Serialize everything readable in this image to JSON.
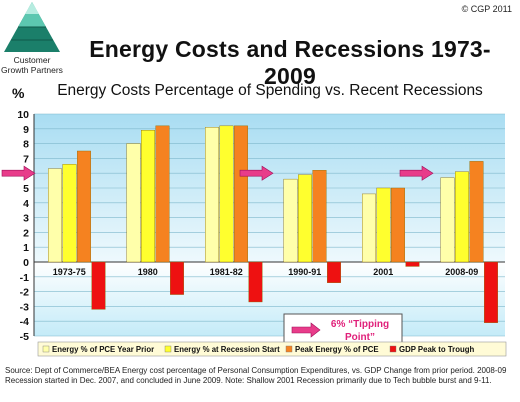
{
  "header": {
    "logo_text": "Customer\nGrowth Partners",
    "copyright": "© CGP 2011",
    "title": "Energy Costs and Recessions 1973-2009"
  },
  "chart_data": {
    "type": "bar",
    "title": "Energy Costs Percentage of Spending vs. Recent Recessions",
    "ylabel": "%",
    "ylim": [
      -5,
      10
    ],
    "yticks": [
      10,
      9,
      8,
      7,
      6,
      5,
      4,
      3,
      2,
      1,
      0,
      -1,
      -2,
      -3,
      -4,
      -5
    ],
    "categories": [
      "1973-75",
      "1980",
      "1981-82",
      "1990-91",
      "2001",
      "2008-09"
    ],
    "series": [
      {
        "name": "Energy % of PCE Year Prior",
        "color": "#ffffaa",
        "values": [
          6.3,
          8.0,
          9.1,
          5.6,
          4.6,
          5.7
        ]
      },
      {
        "name": "Energy % at Recession Start",
        "color": "#ffff2e",
        "values": [
          6.6,
          8.9,
          9.2,
          5.9,
          5.0,
          6.1
        ]
      },
      {
        "name": "Peak Energy % of PCE",
        "color": "#f58220",
        "values": [
          7.5,
          9.2,
          9.2,
          6.2,
          5.0,
          6.8
        ]
      },
      {
        "name": "GDP Peak to Trough",
        "color": "#ee1111",
        "values": [
          -3.2,
          -2.2,
          -2.7,
          -1.4,
          -0.3,
          -4.1
        ]
      }
    ],
    "annotations": [
      {
        "text": "6% “Tipping Point”"
      }
    ],
    "reference_level": 6,
    "grid": true,
    "legend_position": "bottom"
  },
  "source_note": "Source:  Dept of Commerce/BEA Energy cost percentage of Personal Consumption Expenditures, vs. GDP Change from prior period.  2008-09 Recession started in Dec. 2007, and concluded in June 2009.  Note:  Shallow 2001 Recession primarily due to Tech bubble burst and 9-11."
}
